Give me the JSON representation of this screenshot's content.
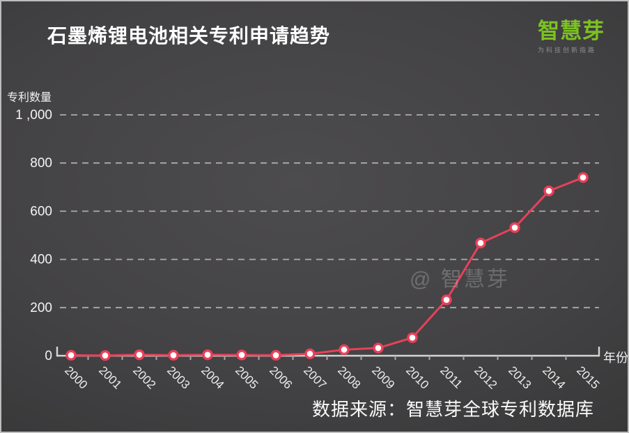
{
  "header": {
    "title": "石墨烯锂电池相关专利申请趋势"
  },
  "logo": {
    "name": "智慧芽",
    "tagline": "为科技创新指路",
    "brand_color": "#7cc221"
  },
  "page": {
    "watermark": "@ 智慧芽",
    "source_note": "数据来源：智慧芽全球专利数据库"
  },
  "chart_data": {
    "type": "line",
    "title": "石墨烯锂电池相关专利申请趋势",
    "xlabel": "年份",
    "ylabel": "专利数量",
    "categories": [
      "2000",
      "2001",
      "2002",
      "2003",
      "2004",
      "2005",
      "2006",
      "2007",
      "2008",
      "2009",
      "2010",
      "2011",
      "2012",
      "2013",
      "2014",
      "2015"
    ],
    "values": [
      2,
      1,
      4,
      2,
      4,
      3,
      2,
      8,
      25,
      32,
      75,
      232,
      468,
      532,
      684,
      740
    ],
    "ylim": [
      0,
      1000
    ],
    "y_ticks": [
      0,
      200,
      400,
      600,
      800,
      1000
    ],
    "y_tick_labels": [
      "0",
      "200",
      "400",
      "600",
      "800",
      "1 ,000"
    ],
    "grid": "horizontal-dashed",
    "legend": "none",
    "line_color": "#e8415a",
    "marker_style": "circle-red-ring-white-fill",
    "axis_color": "#d6d6d6",
    "gridline_color": "#c6c6c6"
  }
}
